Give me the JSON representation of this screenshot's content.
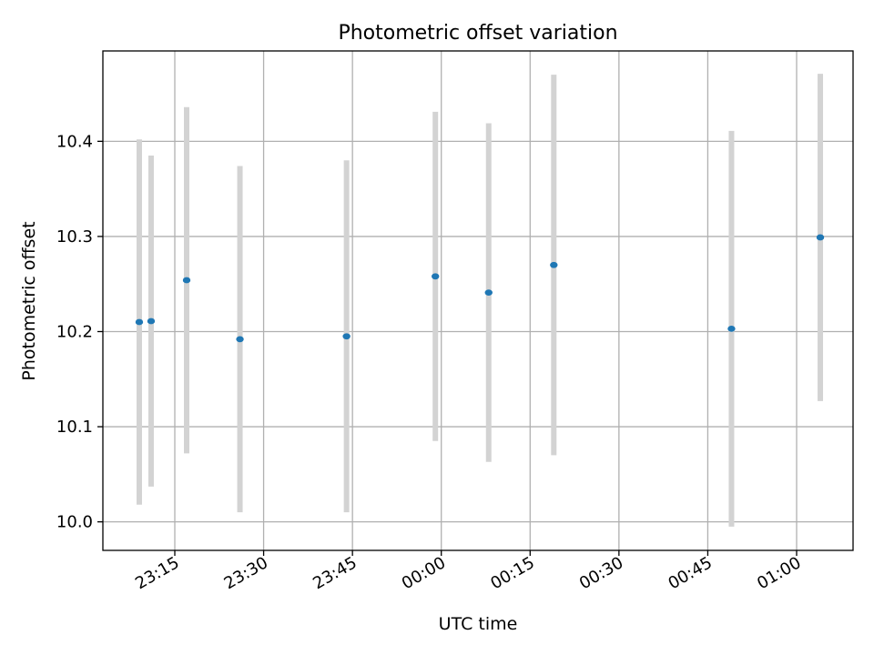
{
  "chart_data": {
    "type": "scatter",
    "title": "Photometric offset variation",
    "xlabel": "UTC time",
    "ylabel": "Photometric offset",
    "grid": true,
    "xaxis": {
      "unit": "clock time",
      "ticks": [
        "23:15",
        "23:30",
        "23:45",
        "00:00",
        "00:15",
        "00:30",
        "00:45",
        "01:00"
      ]
    },
    "ylim": [
      9.97,
      10.495
    ],
    "yticks": [
      "10.0",
      "10.1",
      "10.2",
      "10.3",
      "10.4"
    ],
    "series": [
      {
        "marker_color": "#1f77b4",
        "errorbar_color": "#d3d3d3",
        "points": [
          {
            "time": "23:09",
            "y": 10.21,
            "err": 0.192
          },
          {
            "time": "23:11",
            "y": 10.211,
            "err": 0.174
          },
          {
            "time": "23:17",
            "y": 10.254,
            "err": 0.182
          },
          {
            "time": "23:26",
            "y": 10.192,
            "err": 0.182
          },
          {
            "time": "23:44",
            "y": 10.195,
            "err": 0.185
          },
          {
            "time": "23:59",
            "y": 10.258,
            "err": 0.173
          },
          {
            "time": "00:08",
            "y": 10.241,
            "err": 0.178
          },
          {
            "time": "00:19",
            "y": 10.27,
            "err": 0.2
          },
          {
            "time": "00:49",
            "y": 10.203,
            "err": 0.208
          },
          {
            "time": "01:04",
            "y": 10.299,
            "err": 0.172
          }
        ]
      }
    ]
  }
}
